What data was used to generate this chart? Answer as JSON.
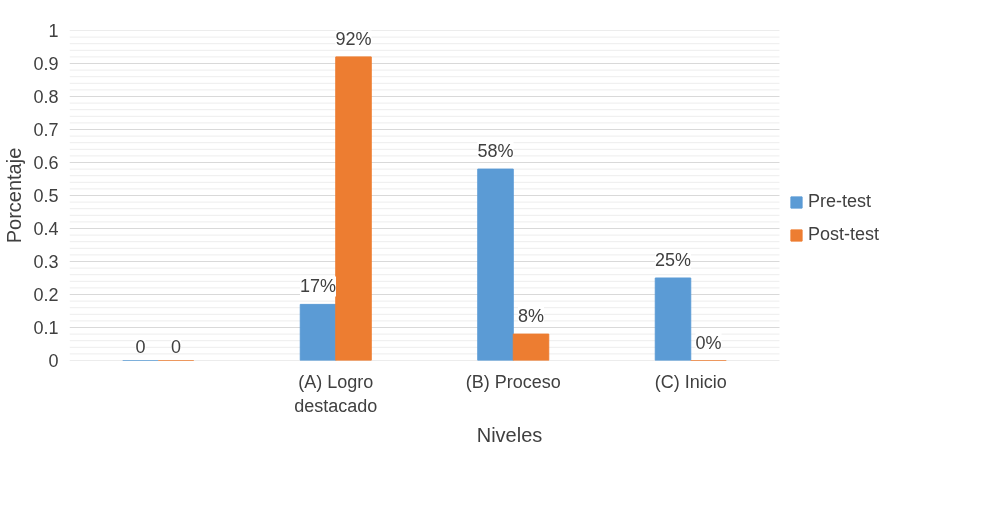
{
  "chart_data": {
    "type": "bar",
    "xlabel": "Niveles",
    "ylabel": "Porcentaje",
    "categories": [
      null,
      "(A) Logro destacado",
      "(B) Proceso",
      "(C) Inicio"
    ],
    "series": [
      {
        "name": "Pre-test",
        "color": "#5b9bd5",
        "values": [
          0,
          0.17,
          0.58,
          0.25
        ],
        "value_labels": [
          "0",
          "17%",
          "58%",
          "25%"
        ]
      },
      {
        "name": "Post-test",
        "color": "#ed7d31",
        "values": [
          0,
          0.92,
          0.08,
          0
        ],
        "value_labels": [
          "0",
          "92%",
          "8%",
          "0%"
        ]
      }
    ],
    "ylim": [
      0,
      1
    ],
    "yticks": [
      0,
      0.1,
      0.2,
      0.3,
      0.4,
      0.5,
      0.6,
      0.7,
      0.8,
      0.9,
      1
    ],
    "grid": "y",
    "legend": "right"
  }
}
